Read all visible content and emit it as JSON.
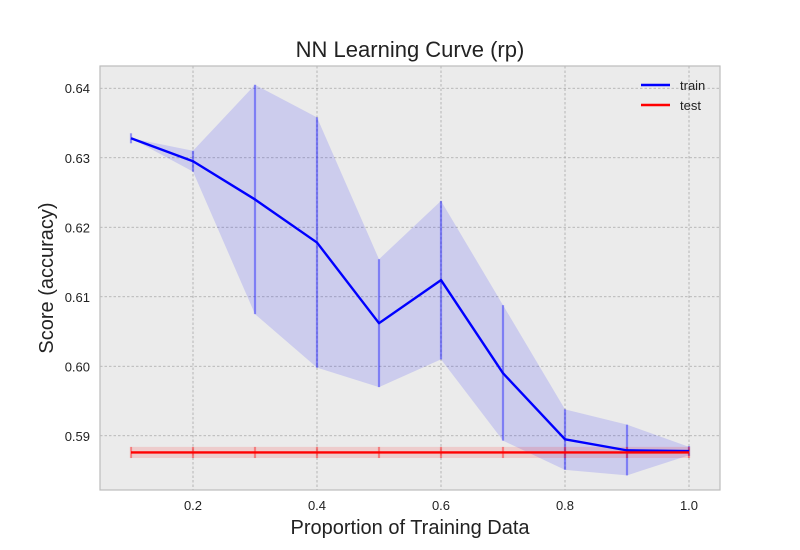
{
  "chart_data": {
    "type": "line",
    "title": "NN Learning Curve (rp)",
    "xlabel": "Proportion of Training Data",
    "ylabel": "Score (accuracy)",
    "xlim": [
      0.05,
      1.05
    ],
    "ylim": [
      0.5822,
      0.6432
    ],
    "xticks": [
      0.2,
      0.4,
      0.6,
      0.8,
      1.0
    ],
    "xtick_labels": [
      "0.2",
      "0.4",
      "0.6",
      "0.8",
      "1.0"
    ],
    "yticks": [
      0.59,
      0.6,
      0.61,
      0.62,
      0.63,
      0.64
    ],
    "ytick_labels": [
      "0.59",
      "0.60",
      "0.61",
      "0.62",
      "0.63",
      "0.64"
    ],
    "grid": true,
    "legend_position": "top-right",
    "x": [
      0.1,
      0.2,
      0.3,
      0.4,
      0.5,
      0.6,
      0.7,
      0.8,
      0.9,
      1.0
    ],
    "series": [
      {
        "name": "train",
        "color": "#0000ff",
        "values": [
          0.6328,
          0.6295,
          0.624,
          0.6178,
          0.6062,
          0.6124,
          0.599,
          0.5895,
          0.5879,
          0.5878
        ],
        "lower": [
          0.6328,
          0.628,
          0.6075,
          0.5998,
          0.597,
          0.601,
          0.5893,
          0.5851,
          0.5843,
          0.5872
        ],
        "upper": [
          0.6328,
          0.631,
          0.6405,
          0.6358,
          0.6154,
          0.6238,
          0.6088,
          0.5938,
          0.5916,
          0.5884
        ]
      },
      {
        "name": "test",
        "color": "#ff0000",
        "values": [
          0.5876,
          0.5876,
          0.5876,
          0.5876,
          0.5876,
          0.5876,
          0.5876,
          0.5876,
          0.5876,
          0.5876
        ],
        "lower": [
          0.5868,
          0.5868,
          0.5868,
          0.5868,
          0.5868,
          0.5868,
          0.5868,
          0.5868,
          0.5868,
          0.5868
        ],
        "upper": [
          0.5884,
          0.5884,
          0.5884,
          0.5884,
          0.5884,
          0.5884,
          0.5884,
          0.5884,
          0.5884,
          0.5884
        ]
      }
    ]
  }
}
